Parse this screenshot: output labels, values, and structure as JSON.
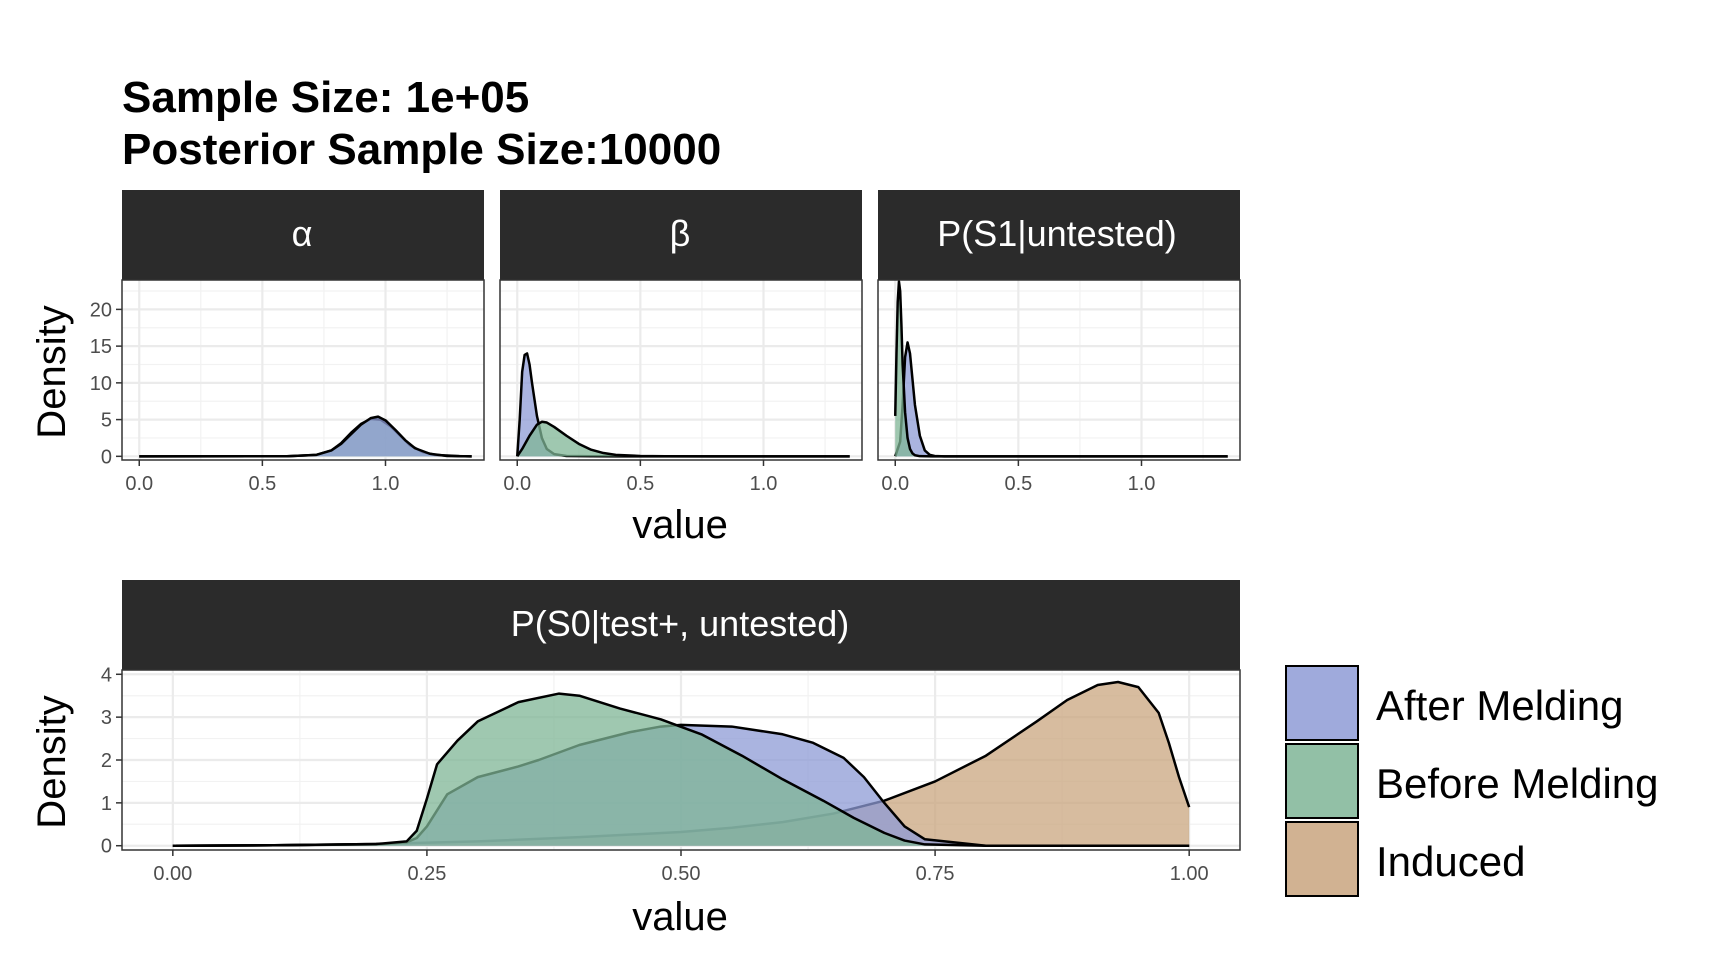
{
  "title_line1": "Sample Size: 1e+05",
  "title_line2": "Posterior Sample Size:10000",
  "colors": {
    "After Melding": "#8e9bd6",
    "Before Melding": "#7fb596",
    "Induced": "#c9a57f",
    "strip_bg": "#2b2b2b",
    "grid": "#ebebeb"
  },
  "legend": [
    "After Melding",
    "Before Melding",
    "Induced"
  ],
  "chart_data": [
    {
      "type": "area",
      "panel": "α",
      "xlabel": "value",
      "ylabel": "Density",
      "xlim": [
        -0.07,
        1.4
      ],
      "ylim": [
        -0.5,
        24
      ],
      "xticks": [
        0.0,
        0.5,
        1.0
      ],
      "xtick_labels": [
        "0.0",
        "0.5",
        "1.0"
      ],
      "yticks": [
        0,
        5,
        10,
        15,
        20
      ],
      "ytick_labels": [
        "0",
        "5",
        "10",
        "15",
        "20"
      ],
      "series": [
        {
          "name": "Before Melding",
          "x": [
            0.0,
            0.6,
            0.72,
            0.78,
            0.82,
            0.86,
            0.9,
            0.94,
            0.98,
            1.02,
            1.06,
            1.1,
            1.15,
            1.2,
            1.3,
            1.35
          ],
          "y": [
            0,
            0.01,
            0.2,
            0.8,
            1.8,
            3.2,
            4.4,
            5.1,
            5.0,
            4.1,
            2.8,
            1.5,
            0.6,
            0.2,
            0.02,
            0
          ]
        },
        {
          "name": "After Melding",
          "x": [
            0.0,
            0.6,
            0.72,
            0.78,
            0.82,
            0.86,
            0.9,
            0.94,
            0.97,
            1.0,
            1.04,
            1.08,
            1.12,
            1.18,
            1.25,
            1.35
          ],
          "y": [
            0,
            0.01,
            0.2,
            0.8,
            1.7,
            3.0,
            4.3,
            5.2,
            5.4,
            4.9,
            3.6,
            2.2,
            1.1,
            0.35,
            0.05,
            0
          ]
        }
      ]
    },
    {
      "type": "area",
      "panel": "β",
      "xlabel": "value",
      "ylabel": "Density",
      "xlim": [
        -0.07,
        1.4
      ],
      "ylim": [
        -0.5,
        24
      ],
      "xticks": [
        0.0,
        0.5,
        1.0
      ],
      "xtick_labels": [
        "0.0",
        "0.5",
        "1.0"
      ],
      "yticks": [
        0,
        5,
        10,
        15,
        20
      ],
      "ytick_labels": [
        "0",
        "5",
        "10",
        "15",
        "20"
      ],
      "series": [
        {
          "name": "After Melding",
          "x": [
            0.0,
            0.01,
            0.02,
            0.03,
            0.04,
            0.05,
            0.06,
            0.08,
            0.1,
            0.12,
            0.15,
            0.2,
            0.3,
            0.4,
            0.6,
            1.35
          ],
          "y": [
            0,
            5.0,
            11.5,
            13.8,
            14.0,
            12.5,
            10.0,
            5.5,
            2.5,
            1.0,
            0.3,
            0.05,
            0.01,
            0,
            0,
            0
          ]
        },
        {
          "name": "Before Melding",
          "x": [
            0.0,
            0.02,
            0.05,
            0.08,
            0.1,
            0.12,
            0.15,
            0.2,
            0.25,
            0.3,
            0.35,
            0.4,
            0.5,
            0.6,
            0.8,
            1.35
          ],
          "y": [
            0,
            1.0,
            2.8,
            4.3,
            4.7,
            4.6,
            4.0,
            2.8,
            1.7,
            0.9,
            0.45,
            0.2,
            0.05,
            0.01,
            0,
            0
          ]
        }
      ]
    },
    {
      "type": "area",
      "panel": "P(S1|untested)",
      "xlabel": "value",
      "ylabel": "Density",
      "xlim": [
        -0.07,
        1.4
      ],
      "ylim": [
        -0.5,
        24
      ],
      "xticks": [
        0.0,
        0.5,
        1.0
      ],
      "xtick_labels": [
        "0.0",
        "0.5",
        "1.0"
      ],
      "yticks": [
        0,
        5,
        10,
        15,
        20
      ],
      "ytick_labels": [
        "0",
        "5",
        "10",
        "15",
        "20"
      ],
      "series": [
        {
          "name": "After Melding",
          "x": [
            0.0,
            0.02,
            0.03,
            0.04,
            0.05,
            0.06,
            0.07,
            0.08,
            0.1,
            0.12,
            0.14,
            0.16,
            0.2,
            0.3,
            1.35
          ],
          "y": [
            0,
            2.0,
            7.0,
            13.5,
            15.5,
            14.0,
            10.5,
            7.0,
            2.8,
            0.8,
            0.2,
            0.05,
            0,
            0,
            0
          ]
        },
        {
          "name": "Before Melding",
          "x": [
            0.0,
            0.005,
            0.01,
            0.015,
            0.02,
            0.025,
            0.03,
            0.04,
            0.05,
            0.06,
            0.07,
            0.08,
            0.1,
            0.15,
            1.35
          ],
          "y": [
            5.5,
            14.0,
            21.0,
            23.8,
            22.5,
            18.0,
            12.5,
            6.0,
            2.5,
            1.0,
            0.4,
            0.15,
            0.02,
            0,
            0
          ]
        }
      ]
    },
    {
      "type": "area",
      "panel": "P(S0|test+, untested)",
      "xlabel": "value",
      "ylabel": "Density",
      "xlim": [
        -0.05,
        1.05
      ],
      "ylim": [
        -0.1,
        4.1
      ],
      "xticks": [
        0.0,
        0.25,
        0.5,
        0.75,
        1.0
      ],
      "xtick_labels": [
        "0.00",
        "0.25",
        "0.50",
        "0.75",
        "1.00"
      ],
      "yticks": [
        0,
        1,
        2,
        3,
        4
      ],
      "ytick_labels": [
        "0",
        "1",
        "2",
        "3",
        "4"
      ],
      "series": [
        {
          "name": "Induced",
          "x": [
            0.0,
            0.1,
            0.2,
            0.3,
            0.4,
            0.5,
            0.55,
            0.6,
            0.65,
            0.7,
            0.75,
            0.8,
            0.85,
            0.88,
            0.91,
            0.93,
            0.95,
            0.97,
            0.98,
            0.99,
            1.0
          ],
          "y": [
            0.0,
            0.01,
            0.04,
            0.1,
            0.2,
            0.32,
            0.42,
            0.55,
            0.75,
            1.05,
            1.5,
            2.1,
            2.9,
            3.4,
            3.75,
            3.82,
            3.7,
            3.1,
            2.4,
            1.6,
            0.9
          ]
        },
        {
          "name": "After Melding",
          "x": [
            0.0,
            0.1,
            0.2,
            0.23,
            0.24,
            0.25,
            0.27,
            0.3,
            0.34,
            0.36,
            0.4,
            0.45,
            0.48,
            0.5,
            0.55,
            0.6,
            0.63,
            0.66,
            0.68,
            0.7,
            0.72,
            0.74,
            0.8,
            1.0
          ],
          "y": [
            0,
            0.01,
            0.03,
            0.08,
            0.18,
            0.45,
            1.2,
            1.6,
            1.85,
            2.0,
            2.35,
            2.65,
            2.78,
            2.82,
            2.78,
            2.6,
            2.4,
            2.05,
            1.6,
            1.0,
            0.45,
            0.15,
            0,
            0
          ]
        },
        {
          "name": "Before Melding",
          "x": [
            0.0,
            0.1,
            0.2,
            0.23,
            0.24,
            0.25,
            0.26,
            0.28,
            0.3,
            0.34,
            0.38,
            0.4,
            0.44,
            0.48,
            0.52,
            0.56,
            0.6,
            0.64,
            0.67,
            0.7,
            0.72,
            0.74,
            0.8,
            1.0
          ],
          "y": [
            0,
            0.01,
            0.04,
            0.1,
            0.35,
            1.1,
            1.9,
            2.45,
            2.9,
            3.35,
            3.55,
            3.5,
            3.2,
            2.95,
            2.6,
            2.1,
            1.55,
            1.05,
            0.65,
            0.3,
            0.12,
            0.03,
            0,
            0
          ]
        }
      ]
    }
  ]
}
